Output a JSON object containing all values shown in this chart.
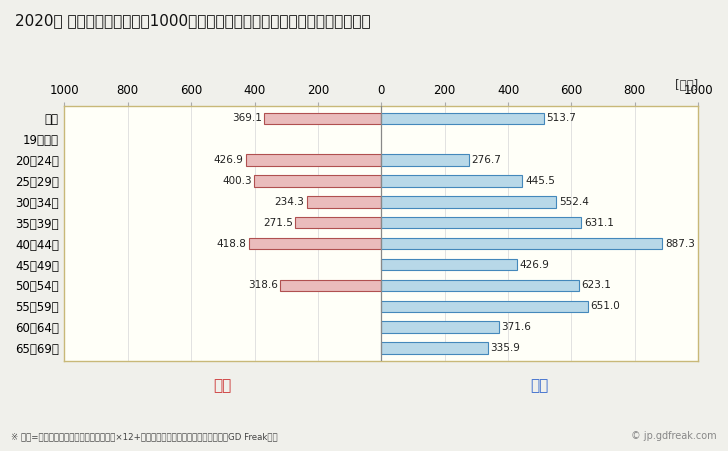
{
  "title": "2020年 民間企業（従業者数1000人以上）フルタイム労働者の男女別平均年収",
  "unit_label": "[万円]",
  "categories": [
    "全体",
    "19歳以下",
    "20〜24歳",
    "25〜29歳",
    "30〜34歳",
    "35〜39歳",
    "40〜44歳",
    "45〜49歳",
    "50〜54歳",
    "55〜59歳",
    "60〜64歳",
    "65〜69歳"
  ],
  "female_values": [
    369.1,
    0,
    426.9,
    400.3,
    234.3,
    271.5,
    418.8,
    0,
    318.6,
    0,
    0,
    0
  ],
  "male_values": [
    513.7,
    0,
    276.7,
    445.5,
    552.4,
    631.1,
    887.3,
    426.9,
    623.1,
    651.0,
    371.6,
    335.9
  ],
  "female_color": "#eabcbc",
  "female_edge_color": "#b05050",
  "male_color": "#b8d8e8",
  "male_edge_color": "#4488bb",
  "female_label": "女性",
  "male_label": "男性",
  "female_label_color": "#cc3333",
  "male_label_color": "#3366cc",
  "xlim": [
    -1000,
    1000
  ],
  "xticks": [
    -1000,
    -800,
    -600,
    -400,
    -200,
    0,
    200,
    400,
    600,
    800,
    1000
  ],
  "xtick_labels": [
    "1000",
    "800",
    "600",
    "400",
    "200",
    "0",
    "200",
    "400",
    "600",
    "800",
    "1000"
  ],
  "footnote": "※ 年収=「きまって支給する現金給与額」×12+「年間賞与その他特別給与額」としてGD Freak推計",
  "watermark": "© jp.gdfreak.com",
  "background_color": "#f0f0eb",
  "plot_background_color": "#fffff8",
  "border_color": "#c8b878",
  "title_fontsize": 11,
  "tick_fontsize": 8.5,
  "label_fontsize": 8.5,
  "value_fontsize": 7.5,
  "legend_fontsize": 11,
  "bar_height": 0.55
}
